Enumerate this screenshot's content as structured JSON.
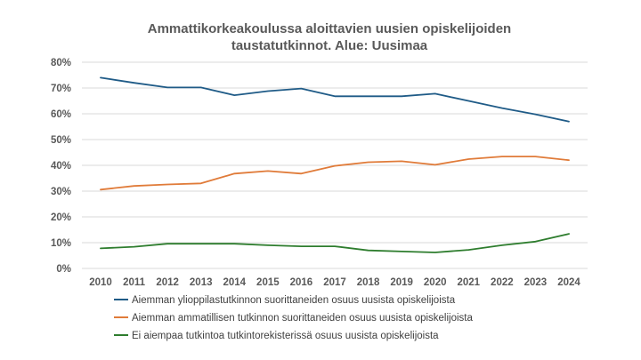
{
  "chart_data": {
    "type": "line",
    "title_lines": [
      "Ammattikorkeakoulussa aloittavien uusien opiskelijoiden",
      "taustatutkinnot. Alue: Uusimaa"
    ],
    "xlabel": "",
    "ylabel": "",
    "x": [
      "2010",
      "2011",
      "2012",
      "2013",
      "2014",
      "2015",
      "2016",
      "2017",
      "2018",
      "2019",
      "2020",
      "2021",
      "2022",
      "2023",
      "2024"
    ],
    "ylim": [
      0,
      80
    ],
    "yticks": [
      0,
      10,
      20,
      30,
      40,
      50,
      60,
      70,
      80
    ],
    "ytick_labels": [
      "0%",
      "10%",
      "20%",
      "30%",
      "40%",
      "50%",
      "60%",
      "70%",
      "80%"
    ],
    "grid": true,
    "legend_position": "bottom",
    "series": [
      {
        "name": "Aiemman ylioppilastutkinnon suorittaneiden osuus uusista opiskelijoista",
        "color": "#1f5b87",
        "values": [
          74,
          72,
          70.2,
          70.2,
          67.2,
          68.8,
          69.8,
          66.8,
          66.8,
          66.8,
          67.8,
          65,
          62.2,
          59.8,
          57
        ]
      },
      {
        "name": "Aiemman ammatillisen tutkinnon suorittaneiden osuus uusista opiskelijoista",
        "color": "#e07b39",
        "values": [
          30.6,
          32,
          32.6,
          33,
          36.8,
          37.8,
          36.8,
          39.8,
          41.2,
          41.6,
          40.2,
          42.4,
          43.4,
          43.4,
          42
        ]
      },
      {
        "name": "Ei aiempaa tutkintoa tutkintorekisterissä osuus uusista opiskelijoista",
        "color": "#2e7d2e",
        "values": [
          7.8,
          8.4,
          9.6,
          9.6,
          9.6,
          9,
          8.6,
          8.6,
          7,
          6.6,
          6.2,
          7.2,
          9,
          10.4,
          13.4
        ]
      }
    ]
  }
}
